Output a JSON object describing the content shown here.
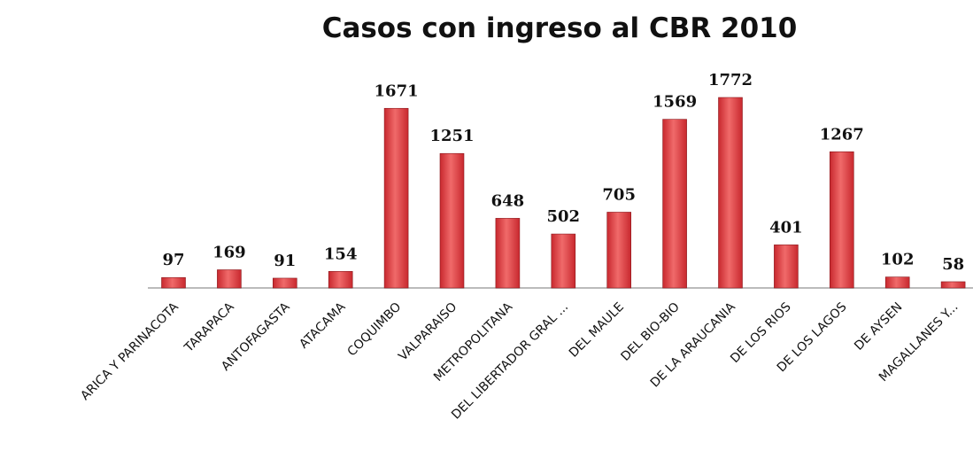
{
  "chart_data": {
    "type": "bar",
    "title": "Casos con ingreso al CBR 2010",
    "categories": [
      "ARICA Y PARINACOTA",
      "TARAPACA",
      "ANTOFAGASTA",
      "ATACAMA",
      "COQUIMBO",
      "VALPARAISO",
      "METROPOLITANA",
      "DEL LIBERTADOR GRAL ...",
      "DEL MAULE",
      "DEL BIO-BIO",
      "DE LA ARAUCANIA",
      "DE LOS RIOS",
      "DE LOS LAGOS",
      "DE AYSEN",
      "MAGALLANES Y..."
    ],
    "values": [
      97,
      169,
      91,
      154,
      1671,
      1251,
      648,
      502,
      705,
      1569,
      1772,
      401,
      1267,
      102,
      58
    ],
    "color": "#c8282e"
  }
}
